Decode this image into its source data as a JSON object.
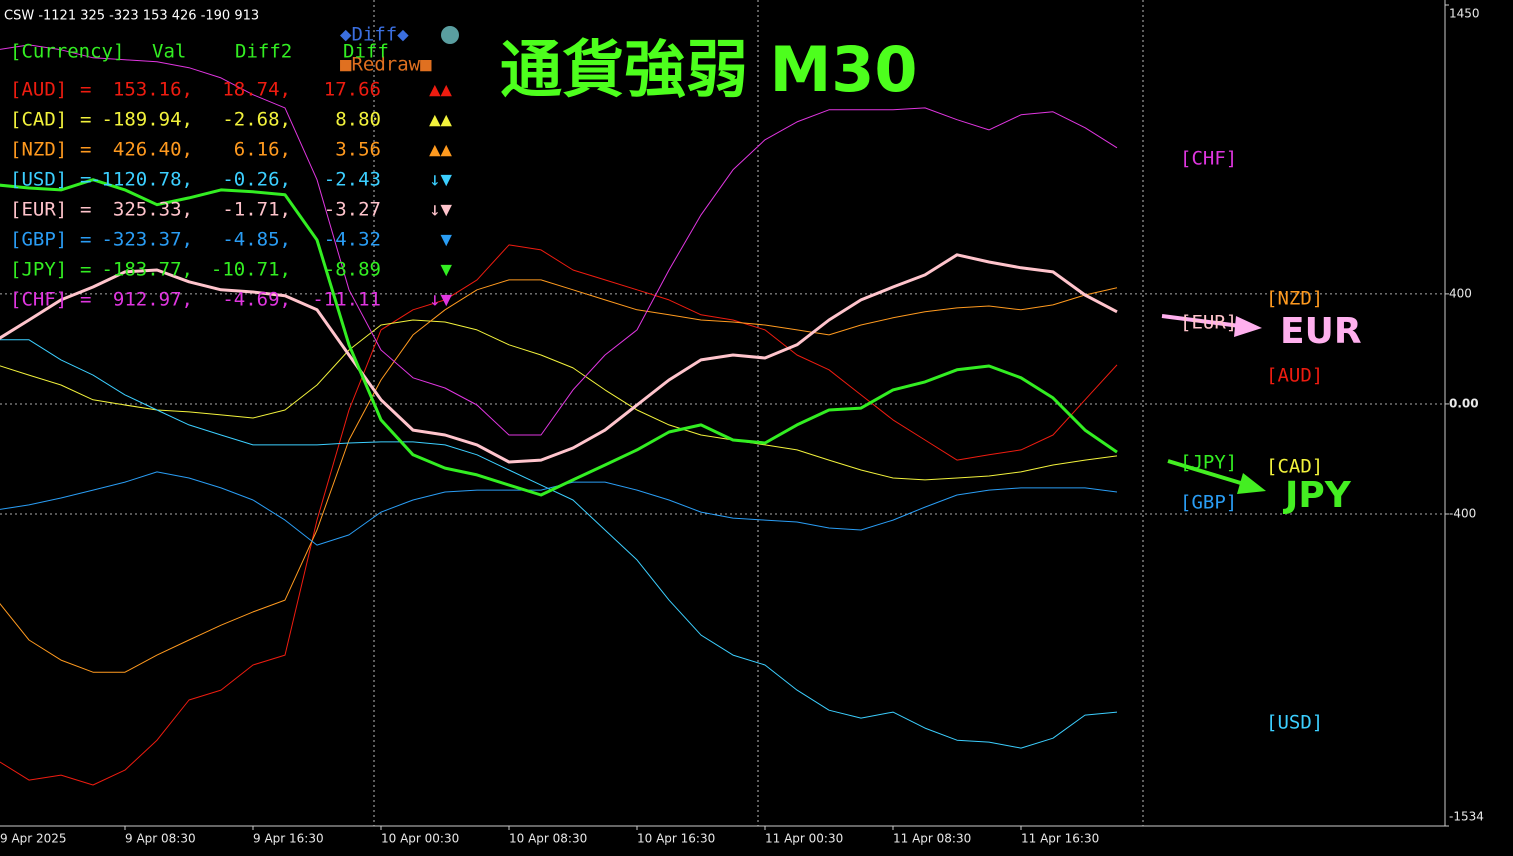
{
  "chart_data": {
    "type": "line",
    "header": "CSW -1121 325 -323 153 426 -190 913",
    "title": "通貨強弱 M30",
    "diff_button": "◆Diff◆",
    "redraw_button": "■Redraw■",
    "categories": [
      "9 Apr 2025",
      null,
      null,
      null,
      "9 Apr 08:30",
      null,
      null,
      null,
      "9 Apr 16:30",
      null,
      null,
      null,
      "10 Apr 00:30",
      null,
      null,
      null,
      "10 Apr 08:30",
      null,
      null,
      null,
      "10 Apr 16:30",
      null,
      null,
      null,
      "11 Apr 00:30",
      null,
      null,
      null,
      "11 Apr 08:30",
      null,
      null,
      null,
      "11 Apr 16:30",
      null,
      null,
      null
    ],
    "ylim": [
      -1534,
      1450
    ],
    "yticks": [
      -1534,
      -400,
      {
        "value": 0,
        "label": "0.00"
      },
      400,
      1450
    ],
    "grid": true,
    "series": [
      {
        "name": "[AUD]",
        "color": "#ee1c10",
        "width": 1,
        "values": [
          -1295,
          -1367,
          -1349,
          -1385,
          -1331,
          -1222,
          -1076,
          -1040,
          -949,
          -913,
          -422,
          -22,
          269,
          342,
          378,
          451,
          578,
          560,
          487,
          451,
          415,
          378,
          324,
          305,
          269,
          178,
          124,
          33,
          -58,
          -131,
          -204,
          -185,
          -167,
          -113,
          15,
          142
        ]
      },
      {
        "name": "[CAD]",
        "color": "#f2f23c",
        "width": 1,
        "values": [
          142,
          105,
          69,
          15,
          -4,
          -22,
          -29,
          -40,
          -51,
          -22,
          69,
          196,
          287,
          305,
          298,
          269,
          215,
          178,
          131,
          51,
          -22,
          -76,
          -113,
          -131,
          -149,
          -167,
          -204,
          -240,
          -269,
          -276,
          -269,
          -262,
          -247,
          -222,
          -204,
          -189
        ]
      },
      {
        "name": "[NZD]",
        "color": "#ff9a1f",
        "width": 1,
        "values": [
          -713,
          -858,
          -931,
          -975,
          -975,
          -913,
          -858,
          -804,
          -756,
          -713,
          -458,
          -131,
          87,
          251,
          342,
          415,
          451,
          451,
          415,
          378,
          342,
          324,
          305,
          298,
          287,
          269,
          251,
          287,
          313,
          335,
          349,
          356,
          342,
          360,
          396,
          422
        ]
      },
      {
        "name": "[USD]",
        "color": "#3ccfff",
        "width": 1,
        "values": [
          233,
          233,
          160,
          105,
          33,
          -22,
          -76,
          -113,
          -149,
          -149,
          -149,
          -142,
          -138,
          -138,
          -149,
          -185,
          -240,
          -295,
          -349,
          -458,
          -567,
          -713,
          -840,
          -913,
          -949,
          -1040,
          -1113,
          -1142,
          -1120,
          -1178,
          -1222,
          -1229,
          -1251,
          -1215,
          -1131,
          -1120
        ]
      },
      {
        "name": "[EUR]",
        "color": "#ffc4cc",
        "width": 3,
        "values": [
          233,
          305,
          378,
          425,
          480,
          487,
          444,
          415,
          407,
          393,
          342,
          178,
          15,
          -95,
          -113,
          -149,
          -211,
          -204,
          -160,
          -95,
          -4,
          87,
          160,
          178,
          167,
          215,
          305,
          378,
          425,
          469,
          542,
          516,
          495,
          480,
          396,
          335
        ]
      },
      {
        "name": "[GBP]",
        "color": "#2a9df4",
        "width": 1,
        "values": [
          -385,
          -367,
          -342,
          -313,
          -284,
          -247,
          -269,
          -305,
          -349,
          -422,
          -513,
          -476,
          -393,
          -349,
          -320,
          -313,
          -313,
          -313,
          -284,
          -284,
          -313,
          -349,
          -393,
          -415,
          -422,
          -429,
          -451,
          -458,
          -422,
          -375,
          -331,
          -313,
          -305,
          -305,
          -305,
          -320
        ]
      },
      {
        "name": "[JPY]",
        "color": "#33ee22",
        "width": 3,
        "values": [
          796,
          785,
          778,
          815,
          778,
          724,
          749,
          778,
          771,
          760,
          596,
          215,
          -58,
          -185,
          -233,
          -258,
          -295,
          -331,
          -276,
          -222,
          -167,
          -102,
          -76,
          -131,
          -142,
          -76,
          -22,
          -15,
          51,
          80,
          124,
          138,
          95,
          22,
          -95,
          -175
        ]
      },
      {
        "name": "[CHF]",
        "color": "#e036e0",
        "width": 1,
        "values": [
          1287,
          1305,
          1287,
          1258,
          1251,
          1244,
          1222,
          1185,
          1124,
          1076,
          815,
          415,
          196,
          95,
          58,
          -4,
          -113,
          -113,
          51,
          178,
          269,
          487,
          687,
          851,
          960,
          1025,
          1069,
          1069,
          1069,
          1076,
          1033,
          996,
          1051,
          1062,
          1004,
          931
        ]
      }
    ],
    "panel": {
      "header": [
        "[Currency]",
        "Val",
        "Diff2",
        "Diff"
      ],
      "rows": [
        [
          "=",
          "153.16,",
          "18.74,",
          "17.66",
          "▲▲"
        ],
        [
          "=",
          "-189.94,",
          "-2.68,",
          "8.80",
          "▲▲"
        ],
        [
          "=",
          "426.40,",
          "6.16,",
          "3.56",
          "▲▲"
        ],
        [
          "=",
          "-1120.78,",
          "-0.26,",
          "-2.43",
          "↓▼"
        ],
        [
          "=",
          "325.33,",
          "-1.71,",
          "-3.27",
          "↓▼"
        ],
        [
          "=",
          "-323.37,",
          "-4.85,",
          "-4.32",
          "▼"
        ],
        [
          "=",
          "-183.77,",
          "-10.71,",
          "-8.89",
          "▼"
        ],
        [
          "=",
          "912.97,",
          "-4.69,",
          "-11.11",
          "↓▼"
        ]
      ]
    },
    "annotations": [
      {
        "text": "EUR",
        "color": "#ffb0ee"
      },
      {
        "text": "JPY",
        "color": "#44ee22"
      }
    ]
  }
}
